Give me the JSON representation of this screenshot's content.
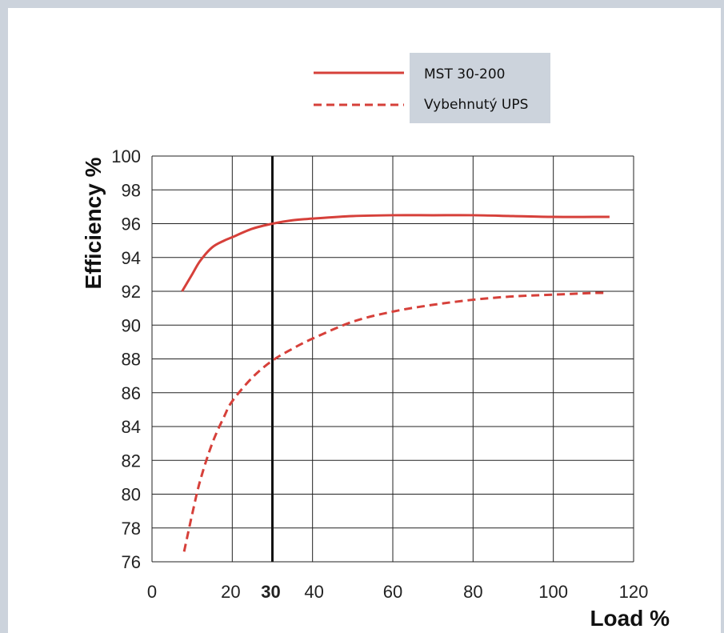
{
  "colors": {
    "series": "#d6403a",
    "grid": "#222222",
    "highlight": "#111111",
    "legend_bg": "#ccd3dc",
    "frame": "#ccd3dc"
  },
  "chart_data": {
    "type": "line",
    "xlabel": "Load %",
    "ylabel": "Efficiency %",
    "xlim": [
      0,
      120
    ],
    "ylim": [
      76,
      100
    ],
    "x_ticks": [
      0,
      20,
      30,
      40,
      60,
      80,
      100,
      120
    ],
    "x_tick_labels": [
      "0",
      "20",
      "30",
      "40",
      "60",
      "80",
      "100",
      "120"
    ],
    "y_ticks": [
      76,
      78,
      80,
      82,
      84,
      86,
      88,
      90,
      92,
      94,
      96,
      98,
      100
    ],
    "y_tick_labels": [
      "76",
      "78",
      "80",
      "82",
      "84",
      "86",
      "88",
      "90",
      "92",
      "94",
      "96",
      "98",
      "100"
    ],
    "highlight_x": 30,
    "grid": true,
    "legend_position": "top-right",
    "series": [
      {
        "name": "MST 30-200",
        "style": "solid",
        "x": [
          7.5,
          10,
          12,
          15,
          18,
          20,
          25,
          30,
          35,
          40,
          50,
          60,
          70,
          80,
          90,
          100,
          110,
          114
        ],
        "y": [
          92.0,
          93.0,
          93.8,
          94.6,
          95.0,
          95.2,
          95.7,
          96.0,
          96.2,
          96.3,
          96.45,
          96.5,
          96.5,
          96.5,
          96.45,
          96.4,
          96.4,
          96.4
        ]
      },
      {
        "name": "Vybehnutý UPS",
        "style": "dashed",
        "x": [
          8,
          10,
          12,
          15,
          18,
          20,
          25,
          30,
          35,
          40,
          50,
          60,
          70,
          80,
          90,
          100,
          110,
          113
        ],
        "y": [
          76.6,
          78.8,
          80.8,
          83.0,
          84.6,
          85.5,
          86.9,
          87.9,
          88.6,
          89.2,
          90.2,
          90.8,
          91.2,
          91.5,
          91.7,
          91.8,
          91.9,
          91.9
        ]
      }
    ]
  }
}
